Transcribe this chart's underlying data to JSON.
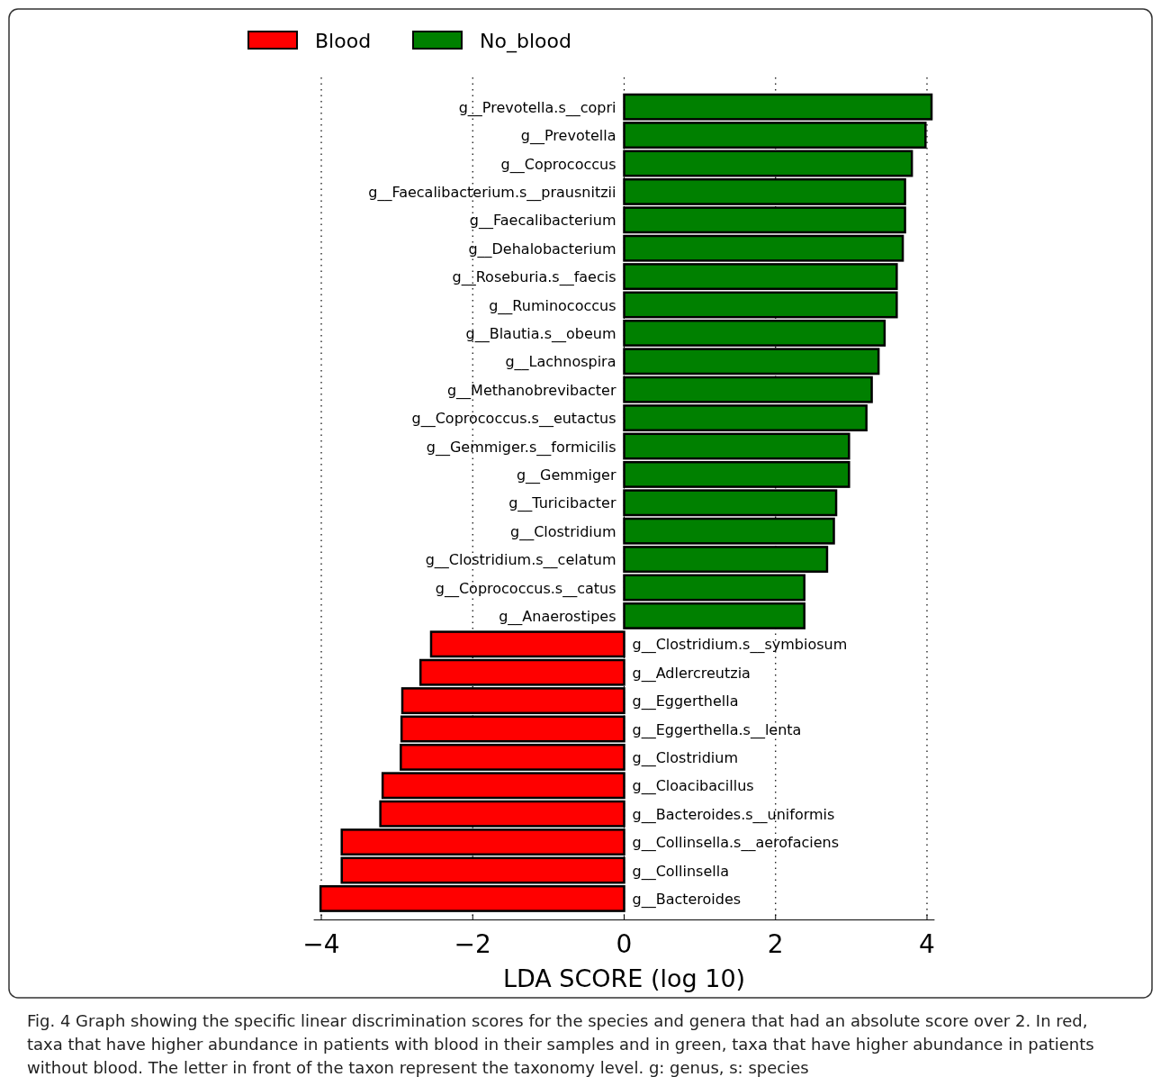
{
  "chart_data": {
    "type": "bar",
    "orientation": "horizontal",
    "xlabel": "LDA SCORE (log 10)",
    "categories": [
      "g__Prevotella.s__copri",
      "g__Prevotella",
      "g__Coprococcus",
      "g__Faecalibacterium.s__prausnitzii",
      "g__Faecalibacterium",
      "g__Dehalobacterium",
      "g__Roseburia.s__faecis",
      "g__Ruminococcus",
      "g__Blautia.s__obeum",
      "g__Lachnospira",
      "g__Methanobrevibacter",
      "g__Coprococcus.s__eutactus",
      "g__Gemmiger.s__formicilis",
      "g__Gemmiger",
      "g__Turicibacter",
      "g__Clostridium",
      "g__Clostridium.s__celatum",
      "g__Coprococcus.s__catus",
      "g__Anaerostipes",
      "g__Clostridium.s__symbiosum",
      "g__Adlercreutzia",
      "g__Eggerthella",
      "g__Eggerthella.s__lenta",
      "g__Clostridium",
      "g__Cloacibacillus",
      "g__Bacteroides.s__uniformis",
      "g__Collinsella.s__aerofaciens",
      "g__Collinsella",
      "g__Bacteroides"
    ],
    "series": [
      {
        "name": "Blood",
        "color": "#ff0000",
        "values": [
          null,
          null,
          null,
          null,
          null,
          null,
          null,
          null,
          null,
          null,
          null,
          null,
          null,
          null,
          null,
          null,
          null,
          null,
          null,
          -2.55,
          -2.69,
          -2.93,
          -2.94,
          -2.95,
          -3.19,
          -3.22,
          -3.73,
          -3.73,
          -4.01
        ]
      },
      {
        "name": "No_blood",
        "color": "#008000",
        "values": [
          4.06,
          3.98,
          3.8,
          3.71,
          3.71,
          3.68,
          3.6,
          3.6,
          3.44,
          3.36,
          3.27,
          3.2,
          2.97,
          2.97,
          2.8,
          2.77,
          2.68,
          2.38,
          2.38,
          null,
          null,
          null,
          null,
          null,
          null,
          null,
          null,
          null,
          null
        ]
      }
    ],
    "xlim": [
      -4.1,
      4.1
    ],
    "xticks": [
      {
        "value": -4,
        "label": "−4"
      },
      {
        "value": -2,
        "label": "−2"
      },
      0,
      2,
      4
    ],
    "grid": "x",
    "legend": "top",
    "annotations": [
      "Fig. 4 Graph showing the specific linear discrimination scores for the species and genera that had an absolute score over 2. In red, taxa that have higher abundance in patients with blood in their samples and in green, taxa that have higher abundance in patients without blood. The letter in front of the taxon represent the taxonomy level. g: genus, s: species"
    ]
  }
}
